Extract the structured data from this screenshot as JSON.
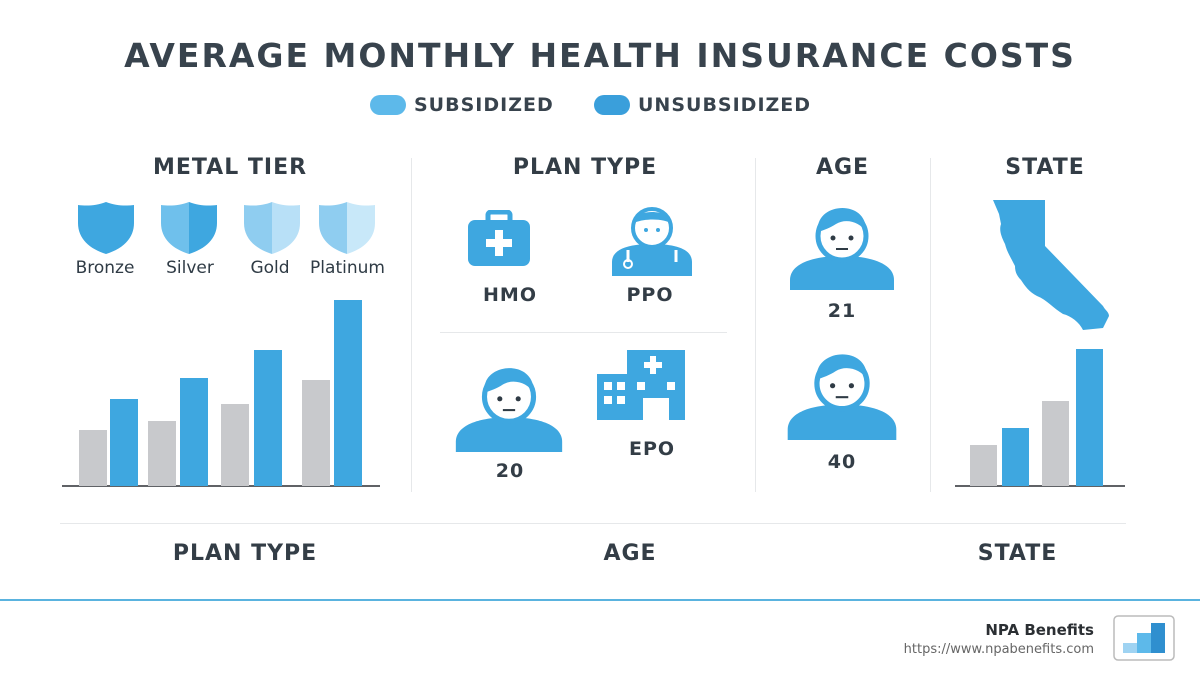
{
  "title": "AVERAGE MONTHLY HEALTH INSURANCE COSTS",
  "legend": [
    {
      "label": "SUBSIDIZED",
      "color": "#5db9ea"
    },
    {
      "label": "UNSUBSIDIZED",
      "color": "#3a9fdb"
    }
  ],
  "colors": {
    "bar_gray": "#c8c9cc",
    "bar_blue": "#3ea7e0",
    "icon_blue": "#3ea7e0"
  },
  "sections": {
    "metal_tier": {
      "title": "METAL TIER",
      "tiers": [
        "Bronze",
        "Silver",
        "Gold",
        "Platinum"
      ]
    },
    "plan_type": {
      "title": "PLAN TYPE",
      "items": [
        {
          "label": "HMO",
          "icon": "medical-kit-icon"
        },
        {
          "label": "PPO",
          "icon": "doctor-icon"
        },
        {
          "label": "20",
          "icon": "person-icon"
        },
        {
          "label": "EPO",
          "icon": "hospital-icon"
        }
      ]
    },
    "age": {
      "title": "AGE",
      "items": [
        {
          "label": "21",
          "icon": "person-icon"
        },
        {
          "label": "40",
          "icon": "person-icon"
        }
      ]
    },
    "state": {
      "title": "STATE",
      "icon": "california-map-icon"
    }
  },
  "bottom_labels": [
    "PLAN TYPE",
    "AGE",
    "STATE"
  ],
  "footer": {
    "brand": "NPA Benefits",
    "url": "https://www.npabenefits.com",
    "logo": "bar-chart-logo-icon"
  },
  "chart_data": [
    {
      "type": "bar",
      "categories": [
        "Bronze",
        "Silver",
        "Gold",
        "Platinum"
      ],
      "series": [
        {
          "values": [
            56,
            65,
            82,
            106
          ]
        },
        {
          "values": [
            87,
            108,
            136,
            186
          ]
        }
      ],
      "ylim": [
        0,
        190
      ],
      "grid": false
    },
    {
      "type": "bar",
      "categories": [
        "",
        ""
      ],
      "series": [
        {
          "values": [
            41,
            85
          ]
        },
        {
          "values": [
            58,
            137
          ]
        }
      ],
      "ylim": [
        0,
        190
      ],
      "grid": false
    }
  ]
}
